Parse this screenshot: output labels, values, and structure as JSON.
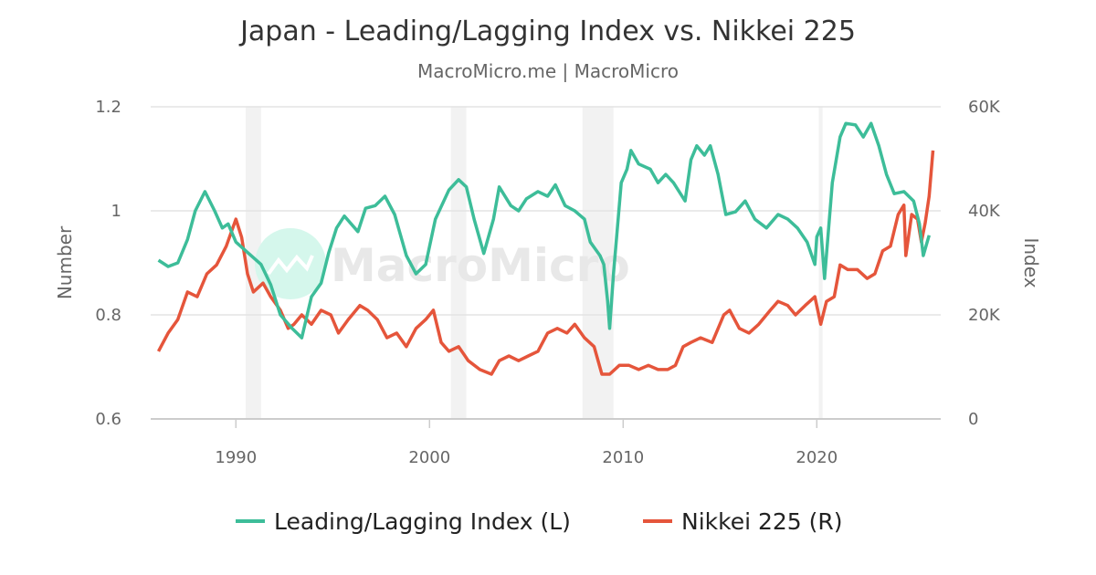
{
  "chart_data": {
    "type": "line",
    "title": "Japan - Leading/Lagging Index vs. Nikkei 225",
    "subtitle": "MacroMicro.me | MacroMicro",
    "watermark": "MacroMicro",
    "xlabel": "",
    "ylabel_left": "Number",
    "ylabel_right": "Index",
    "xlim": [
      1985.6,
      2026.4
    ],
    "ylim_left": [
      0.6,
      1.2
    ],
    "ylim_right": [
      0,
      60000
    ],
    "x_ticks": [
      {
        "value": 1990,
        "label": "1990"
      },
      {
        "value": 2000,
        "label": "2000"
      },
      {
        "value": 2010,
        "label": "2010"
      },
      {
        "value": 2020,
        "label": "2020"
      }
    ],
    "y_ticks_left": [
      {
        "value": 0.6,
        "label": "0.6"
      },
      {
        "value": 0.8,
        "label": "0.8"
      },
      {
        "value": 1.0,
        "label": "1"
      },
      {
        "value": 1.2,
        "label": "1.2"
      }
    ],
    "y_ticks_right": [
      {
        "value": 0,
        "label": "0"
      },
      {
        "value": 20000,
        "label": "20K"
      },
      {
        "value": 40000,
        "label": "40K"
      },
      {
        "value": 60000,
        "label": "60K"
      }
    ],
    "grid": true,
    "legend_position": "bottom",
    "recession_bands": [
      [
        1990.5,
        1991.3
      ],
      [
        2001.1,
        2001.9
      ],
      [
        2007.9,
        2009.5
      ],
      [
        2020.1,
        2020.3
      ]
    ],
    "series": [
      {
        "name": "Leading/Lagging Index (L)",
        "axis": "left",
        "color": "#3dbd99",
        "x": [
          1986.0,
          1986.5,
          1987.0,
          1987.5,
          1987.9,
          1988.4,
          1988.9,
          1989.3,
          1989.6,
          1990.0,
          1990.6,
          1991.3,
          1991.8,
          1992.3,
          1992.9,
          1993.4,
          1993.9,
          1994.4,
          1994.8,
          1995.2,
          1995.6,
          1996.3,
          1996.7,
          1997.2,
          1997.7,
          1998.2,
          1998.8,
          1999.3,
          1999.8,
          2000.3,
          2001.0,
          2001.5,
          2001.9,
          2002.3,
          2002.8,
          2003.3,
          2003.6,
          2004.2,
          2004.6,
          2005.0,
          2005.6,
          2006.1,
          2006.5,
          2007.0,
          2007.5,
          2008.0,
          2008.3,
          2008.8,
          2009.0,
          2009.2,
          2009.3,
          2009.5,
          2009.9,
          2010.2,
          2010.4,
          2010.8,
          2011.4,
          2011.8,
          2012.2,
          2012.6,
          2013.2,
          2013.5,
          2013.8,
          2014.2,
          2014.5,
          2014.9,
          2015.3,
          2015.8,
          2016.3,
          2016.8,
          2017.4,
          2018.0,
          2018.5,
          2019.0,
          2019.5,
          2019.9,
          2020.0,
          2020.2,
          2020.4,
          2020.8,
          2021.2,
          2021.5,
          2022.0,
          2022.4,
          2022.8,
          2023.2,
          2023.6,
          2024.0,
          2024.5,
          2025.0,
          2025.3,
          2025.5,
          2025.8
        ],
        "y": [
          0.905,
          0.893,
          0.9,
          0.945,
          1.0,
          1.037,
          1.0,
          0.967,
          0.975,
          0.94,
          0.92,
          0.897,
          0.858,
          0.8,
          0.774,
          0.756,
          0.835,
          0.861,
          0.92,
          0.967,
          0.99,
          0.96,
          1.005,
          1.01,
          1.028,
          0.993,
          0.914,
          0.879,
          0.897,
          0.984,
          1.04,
          1.06,
          1.046,
          0.984,
          0.918,
          0.984,
          1.046,
          1.01,
          1.0,
          1.023,
          1.037,
          1.028,
          1.05,
          1.01,
          1.0,
          0.984,
          0.94,
          0.914,
          0.897,
          0.826,
          0.774,
          0.879,
          1.054,
          1.08,
          1.116,
          1.09,
          1.08,
          1.054,
          1.07,
          1.054,
          1.019,
          1.098,
          1.125,
          1.107,
          1.125,
          1.07,
          0.993,
          0.998,
          1.019,
          0.984,
          0.967,
          0.993,
          0.984,
          0.967,
          0.94,
          0.897,
          0.95,
          0.967,
          0.87,
          1.054,
          1.142,
          1.168,
          1.165,
          1.142,
          1.168,
          1.125,
          1.07,
          1.033,
          1.037,
          1.019,
          0.975,
          0.914,
          0.953
        ]
      },
      {
        "name": "Nikkei 225 (R)",
        "axis": "right",
        "color": "#e5553b",
        "x": [
          1986.0,
          1986.5,
          1987.0,
          1987.5,
          1988.0,
          1988.5,
          1989.0,
          1989.5,
          1990.0,
          1990.3,
          1990.6,
          1990.9,
          1991.4,
          1991.8,
          1992.3,
          1992.7,
          1993.0,
          1993.4,
          1993.9,
          1994.4,
          1994.9,
          1995.3,
          1995.8,
          1996.4,
          1996.8,
          1997.3,
          1997.8,
          1998.3,
          1998.8,
          1999.3,
          1999.8,
          2000.2,
          2000.6,
          2001.0,
          2001.5,
          2002.0,
          2002.6,
          2003.2,
          2003.6,
          2004.1,
          2004.6,
          2005.1,
          2005.6,
          2006.1,
          2006.6,
          2007.1,
          2007.5,
          2008.0,
          2008.5,
          2008.9,
          2009.3,
          2009.8,
          2010.3,
          2010.8,
          2011.3,
          2011.8,
          2012.3,
          2012.7,
          2013.1,
          2013.5,
          2014.0,
          2014.6,
          2015.2,
          2015.5,
          2016.0,
          2016.5,
          2017.0,
          2017.6,
          2018.0,
          2018.5,
          2018.9,
          2019.4,
          2019.9,
          2020.2,
          2020.5,
          2020.9,
          2021.2,
          2021.6,
          2022.1,
          2022.6,
          2023.0,
          2023.4,
          2023.8,
          2024.2,
          2024.5,
          2024.6,
          2024.9,
          2025.2,
          2025.4,
          2025.6,
          2025.8,
          2026.0
        ],
        "y": [
          13000,
          16500,
          19100,
          24400,
          23500,
          27900,
          29600,
          33200,
          38400,
          34900,
          27900,
          24400,
          26100,
          23500,
          20900,
          17400,
          18200,
          20000,
          18200,
          20900,
          20000,
          16500,
          19100,
          21800,
          20900,
          19100,
          15600,
          16500,
          13900,
          17400,
          19100,
          20900,
          14700,
          13000,
          13900,
          11200,
          9500,
          8600,
          11200,
          12100,
          11200,
          12100,
          13000,
          16500,
          17400,
          16500,
          18200,
          15600,
          13900,
          8600,
          8600,
          10300,
          10300,
          9500,
          10300,
          9500,
          9500,
          10300,
          13900,
          14700,
          15600,
          14700,
          20000,
          20900,
          17400,
          16500,
          18200,
          20900,
          22600,
          21800,
          20000,
          21800,
          23500,
          18200,
          22600,
          23500,
          29600,
          28700,
          28700,
          27000,
          27900,
          32300,
          33200,
          39300,
          41100,
          31400,
          39300,
          38400,
          34000,
          37700,
          42800,
          51600
        ]
      }
    ]
  }
}
